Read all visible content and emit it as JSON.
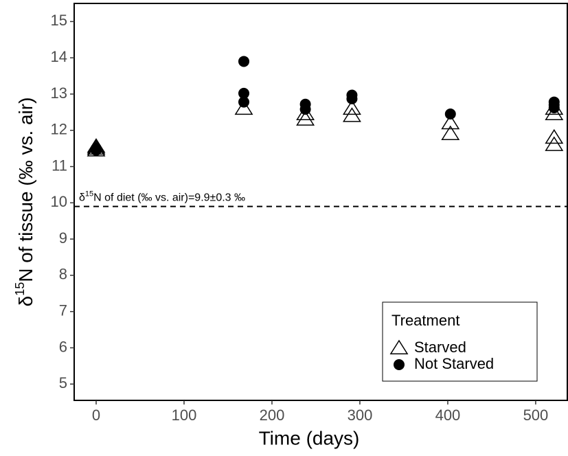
{
  "chart_data": {
    "type": "scatter",
    "x_label": "Time (days)",
    "y_label": [
      "δ",
      "15",
      "N of tissue (‰ vs. air)"
    ],
    "xlim": [
      -25,
      536
    ],
    "xticks": [
      0,
      100,
      200,
      300,
      400,
      500
    ],
    "ylim": [
      4.55,
      15.5
    ],
    "yticks": [
      5,
      6,
      7,
      8,
      9,
      10,
      11,
      12,
      13,
      14,
      15
    ],
    "hline": 9.9,
    "annotation": [
      "δ",
      "15",
      "N of diet (‰ vs. air)=9.9±0.3 ‰"
    ],
    "legend_title": "Treatment",
    "legend_position": "bottom-right",
    "series": [
      {
        "name": "Starved",
        "marker": "triangle",
        "color": "#000000",
        "x": [
          0,
          0,
          0,
          168,
          238,
          238,
          291,
          291,
          403,
          403,
          521,
          521,
          521,
          521
        ],
        "values": [
          11.45,
          11.5,
          11.55,
          12.6,
          12.3,
          12.45,
          12.4,
          12.6,
          11.9,
          12.2,
          11.6,
          11.8,
          12.45,
          12.6
        ]
      },
      {
        "name": "Not Starved",
        "marker": "circle",
        "color": "#000000",
        "x": [
          0,
          0,
          168,
          168,
          168,
          238,
          238,
          291,
          291,
          403,
          521,
          521,
          521
        ],
        "values": [
          11.45,
          11.5,
          13.9,
          13.02,
          12.78,
          12.72,
          12.58,
          12.97,
          12.87,
          12.45,
          12.78,
          12.7,
          12.62
        ]
      }
    ]
  }
}
